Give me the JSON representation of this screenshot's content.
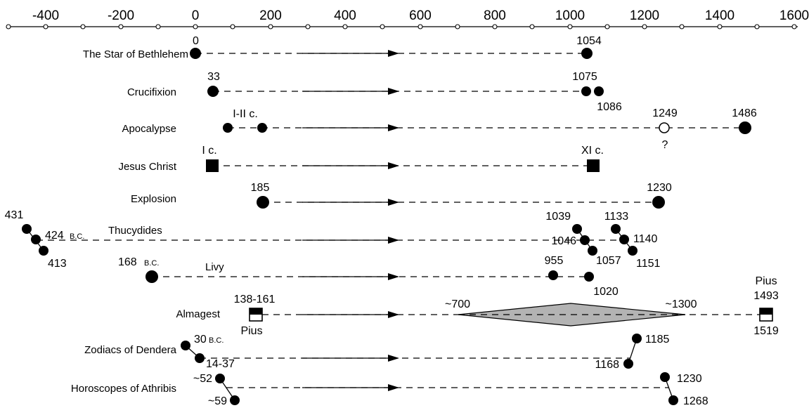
{
  "axis": {
    "ticks": [
      "-400",
      "-200",
      "0",
      "200",
      "400",
      "600",
      "800",
      "1000",
      "1200",
      "1400",
      "1600"
    ]
  },
  "rows": [
    {
      "label": "The Star of Bethlehem",
      "annotations": [
        "0",
        "1054"
      ]
    },
    {
      "label": "Crucifixion",
      "annotations": [
        "33",
        "1075",
        "1086"
      ]
    },
    {
      "label": "Apocalypse",
      "annotations": [
        "I-II c.",
        "1249",
        "?",
        "1486"
      ]
    },
    {
      "label": "Jesus Christ",
      "annotations": [
        "I c.",
        "XI c."
      ]
    },
    {
      "label": "Explosion",
      "annotations": [
        "185",
        "1230"
      ]
    },
    {
      "label": "Thucydides",
      "annotations": [
        "431",
        "424",
        "B.C.",
        "413",
        "1039",
        "1046",
        "1057",
        "1133",
        "1140",
        "1151"
      ]
    },
    {
      "label": "Livy",
      "annotations": [
        "168",
        "B.C.",
        "955",
        "1020"
      ]
    },
    {
      "label": "Almagest",
      "annotations": [
        "138-161",
        "Pius",
        "~700",
        "~1300",
        "Pius",
        "1493",
        "1519"
      ]
    },
    {
      "label": "Zodiacs of Dendera",
      "annotations": [
        "30",
        "B.C.",
        "14-37",
        "1185",
        "1168"
      ]
    },
    {
      "label": "Horoscopes of Athribis",
      "annotations": [
        "~52",
        "~59",
        "1230",
        "1268"
      ]
    }
  ],
  "colors": {
    "ink": "#000000",
    "lozenge": "#b3b3b3",
    "background": "#ffffff"
  }
}
